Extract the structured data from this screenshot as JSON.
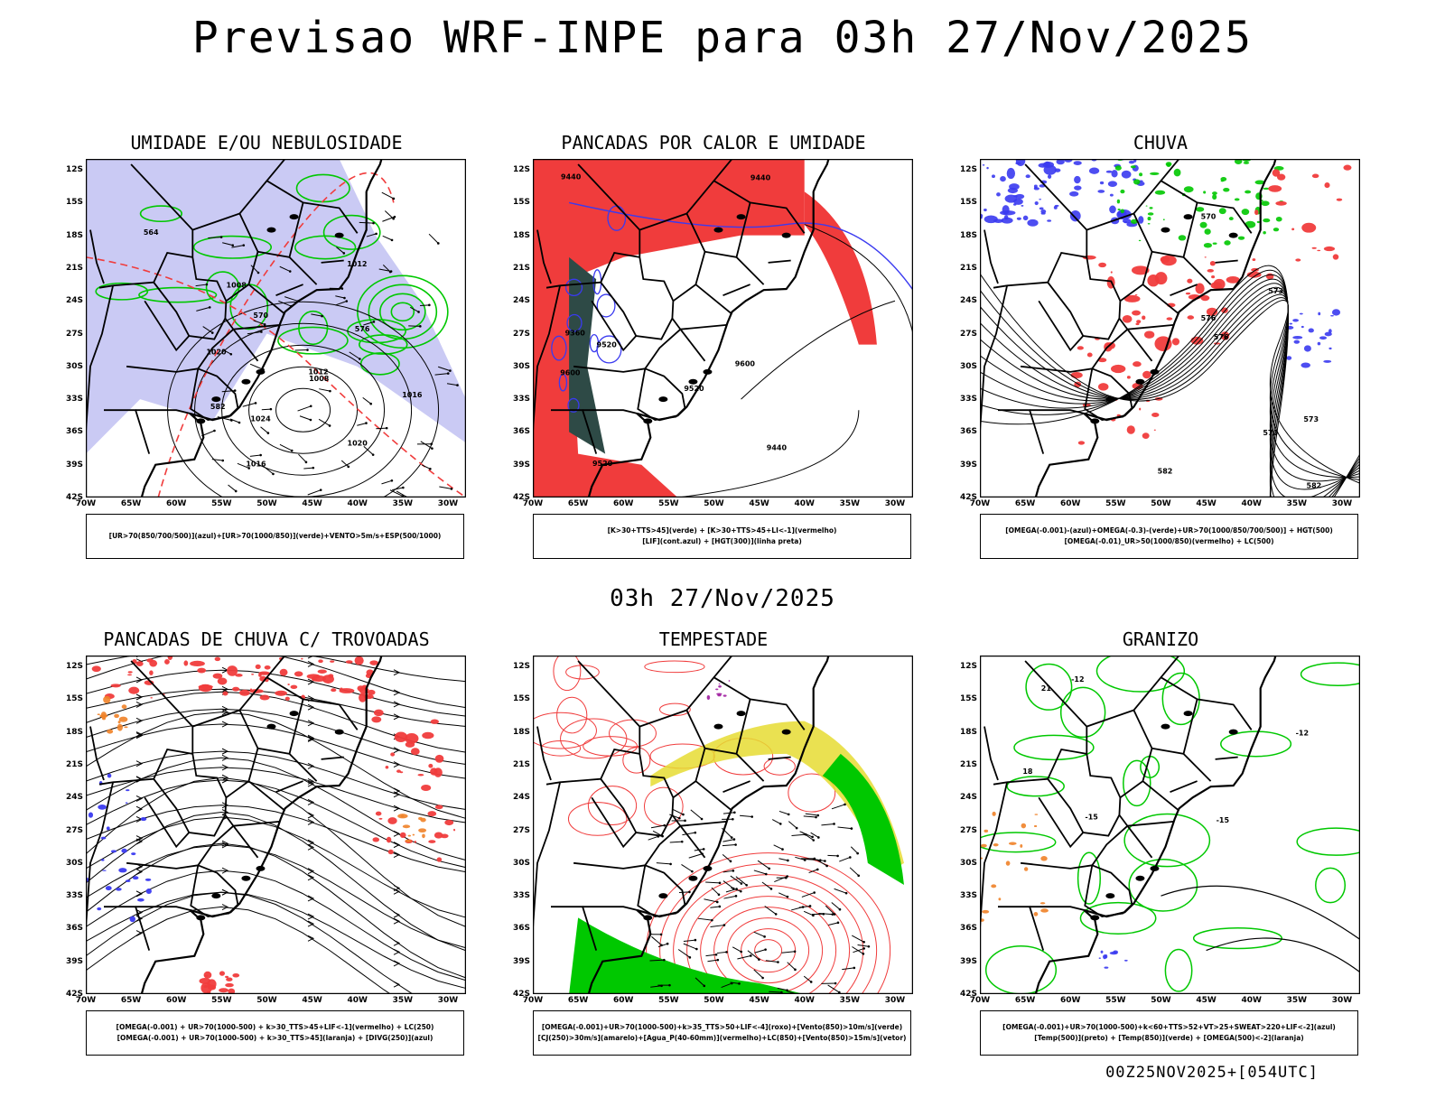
{
  "header": {
    "title": "Previsao WRF-INPE  para 03h 27/Nov/2025",
    "subtitle": "03h 27/Nov/2025",
    "footer": "00Z25NOV2025+[054UTC]"
  },
  "axes": {
    "lat_labels": [
      "12S",
      "15S",
      "18S",
      "21S",
      "24S",
      "27S",
      "30S",
      "33S",
      "36S",
      "39S",
      "42S"
    ],
    "lon_labels": [
      "70W",
      "65W",
      "60W",
      "55W",
      "50W",
      "45W",
      "40W",
      "35W",
      "30W"
    ]
  },
  "colors": {
    "blue": "#3a3af0",
    "lightblue": "#b4b4f0",
    "green": "#00c800",
    "darkgreen": "#008c00",
    "red": "#f03c3c",
    "orange": "#f08228",
    "yellow": "#e6dc32",
    "darkteal": "#2e4a46",
    "purple": "#a01ea0"
  },
  "panels": [
    {
      "title": "UMIDADE E/OU NEBULOSIDADE",
      "legend": [
        "[UR>70(850/700/500)](azul)+[UR>70(1000/850)](verde)+VENTO>5m/s+ESP(500/1000)"
      ],
      "contour_labels": [
        "1008",
        "1008",
        "1012",
        "1012",
        "1016",
        "1016",
        "1020",
        "1020",
        "1024",
        "576",
        "570",
        "564",
        "582"
      ]
    },
    {
      "title": "PANCADAS POR CALOR E UMIDADE",
      "legend": [
        "[K>30+TTS>45](verde) + [K>30+TTS>45+LI<-1](vermelho)",
        "[LIF](cont.azul) + [HGT(300)](linha preta)"
      ],
      "contour_labels": [
        "9600",
        "9600",
        "9520",
        "9520",
        "9440",
        "9440",
        "9440",
        "9360",
        "9520"
      ]
    },
    {
      "title": "CHUVA",
      "legend": [
        "[OMEGA(-0.001)-(azul)+OMEGA(-0.3)-(verde)+UR>70(1000/850/700/500)] + HGT(500)",
        "[OMEGA(-0.01)_UR>50(1000/850)(vermelho) + LC(500)"
      ],
      "contour_labels": [
        "582",
        "582",
        "576",
        "576",
        "573",
        "570",
        "570",
        "573"
      ]
    },
    {
      "title": "PANCADAS DE CHUVA C/ TROVOADAS",
      "legend": [
        "[OMEGA(-0.001) + UR>70(1000-500) + k>30_TTS>45+LIF<-1](vermelho) + LC(250)",
        "[OMEGA(-0.001) + UR>70(1000-500) + k>30_TTS>45](laranja) + [DIVG(250)](azul)"
      ],
      "contour_labels": []
    },
    {
      "title": "TEMPESTADE",
      "legend": [
        "[OMEGA(-0.001)+UR>70(1000-500)+k>35_TTS>50+LIF<-4](roxo)+[Vento(850)>10m/s](verde)",
        "[CJ(250)>30m/s](amarelo)+[Agua_P(40-60mm)](vermelho)+LC(850)+[Vento(850)>15m/s](vetor)"
      ],
      "contour_labels": []
    },
    {
      "title": "GRANIZO",
      "legend": [
        "[OMEGA(-0.001)+UR>70(1000-500)+k<60+TTS>52+VT>25+SWEAT>220+LIF<-2](azul)",
        "[Temp(500)](preto) + [Temp(850)](verde) + [OMEGA(500)<-2](laranja)"
      ],
      "contour_labels": [
        "-12",
        "-12",
        "-15",
        "-15",
        "21",
        "18"
      ]
    }
  ]
}
